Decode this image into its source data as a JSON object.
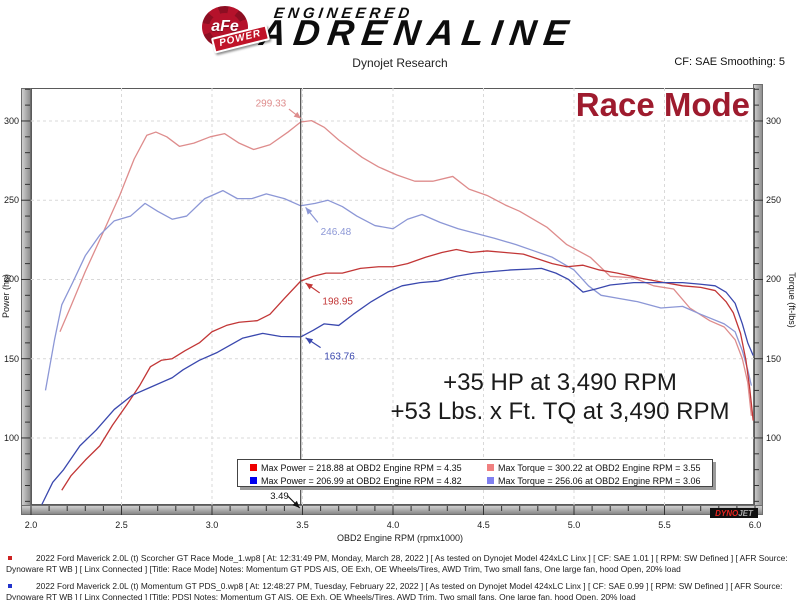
{
  "header": {
    "logo": {
      "afe": "aFe",
      "power": "POWER",
      "engineered": "ENGINEERED",
      "adrenaline": "ADRENALINE"
    },
    "subtitle": "Dynojet Research",
    "smoothing": "CF: SAE Smoothing: 5"
  },
  "chart_data": {
    "type": "line",
    "title": "Race Mode",
    "title_color": "#9e1b2e",
    "xlabel": "OBD2 Engine RPM (rpmx1000)",
    "ylabel_left": "Power (hp)",
    "ylabel_right": "Torque (ft-lbs)",
    "xlim": [
      2.0,
      6.0
    ],
    "ylim": [
      57.7,
      320.8
    ],
    "x_major_ticks": [
      2.0,
      2.5,
      3.0,
      3.5,
      4.0,
      4.5,
      5.0,
      5.5,
      6.0
    ],
    "x_tick_labels": [
      "2.0",
      "2.5",
      "3.0",
      "3.5",
      "4.0",
      "4.5",
      "5.0",
      "5.5",
      "6.0"
    ],
    "x_minor_step": 0.1,
    "y_major_ticks": [
      100,
      150,
      200,
      250,
      300
    ],
    "y_tick_labels": [
      "100",
      "150",
      "200",
      "250",
      "300"
    ],
    "y_minor_step": 10,
    "grid": "dashed",
    "grid_color": "#d9d9d9",
    "cursor": {
      "x": 3.49,
      "label": "3.49"
    },
    "annotations": [
      "+35 HP at 3,490 RPM",
      "+53 Lbs. x Ft. TQ at 3,490 RPM"
    ],
    "series": [
      {
        "name": "afe-torque",
        "color": "#de8c8c",
        "points": [
          [
            2.16,
            167
          ],
          [
            2.22,
            183
          ],
          [
            2.3,
            205
          ],
          [
            2.4,
            230
          ],
          [
            2.49,
            253
          ],
          [
            2.57,
            276
          ],
          [
            2.64,
            291
          ],
          [
            2.69,
            293
          ],
          [
            2.75,
            290
          ],
          [
            2.82,
            284
          ],
          [
            2.9,
            286
          ],
          [
            2.99,
            290
          ],
          [
            3.07,
            292
          ],
          [
            3.15,
            286
          ],
          [
            3.23,
            282
          ],
          [
            3.32,
            285
          ],
          [
            3.42,
            293
          ],
          [
            3.49,
            299.33
          ],
          [
            3.55,
            300.22
          ],
          [
            3.62,
            296
          ],
          [
            3.7,
            288
          ],
          [
            3.83,
            277
          ],
          [
            3.92,
            271
          ],
          [
            4.02,
            266
          ],
          [
            4.12,
            262
          ],
          [
            4.22,
            262
          ],
          [
            4.33,
            265
          ],
          [
            4.42,
            257
          ],
          [
            4.52,
            253
          ],
          [
            4.62,
            247
          ],
          [
            4.7,
            243
          ],
          [
            4.85,
            233
          ],
          [
            4.96,
            222
          ],
          [
            5.09,
            214
          ],
          [
            5.2,
            202
          ],
          [
            5.33,
            201
          ],
          [
            5.44,
            196
          ],
          [
            5.55,
            194
          ],
          [
            5.64,
            182
          ],
          [
            5.75,
            174
          ],
          [
            5.83,
            170
          ],
          [
            5.89,
            162
          ],
          [
            5.93,
            150
          ],
          [
            5.96,
            135
          ],
          [
            5.98,
            114
          ]
        ]
      },
      {
        "name": "stock-torque",
        "color": "#8c97d6",
        "points": [
          [
            2.08,
            130
          ],
          [
            2.13,
            162
          ],
          [
            2.17,
            184
          ],
          [
            2.23,
            198
          ],
          [
            2.3,
            215
          ],
          [
            2.38,
            228
          ],
          [
            2.46,
            237
          ],
          [
            2.55,
            240
          ],
          [
            2.63,
            248
          ],
          [
            2.7,
            243
          ],
          [
            2.78,
            238
          ],
          [
            2.86,
            240
          ],
          [
            2.96,
            251
          ],
          [
            3.06,
            256.06
          ],
          [
            3.14,
            251
          ],
          [
            3.22,
            251
          ],
          [
            3.3,
            254
          ],
          [
            3.4,
            251
          ],
          [
            3.49,
            246.48
          ],
          [
            3.57,
            248
          ],
          [
            3.64,
            250
          ],
          [
            3.72,
            246
          ],
          [
            3.8,
            240
          ],
          [
            3.9,
            234
          ],
          [
            4.0,
            232
          ],
          [
            4.08,
            238
          ],
          [
            4.16,
            241
          ],
          [
            4.26,
            236
          ],
          [
            4.36,
            232
          ],
          [
            4.46,
            229
          ],
          [
            4.56,
            226
          ],
          [
            4.68,
            222
          ],
          [
            4.78,
            218
          ],
          [
            4.88,
            214
          ],
          [
            5.0,
            206
          ],
          [
            5.08,
            196
          ],
          [
            5.15,
            190
          ],
          [
            5.25,
            188
          ],
          [
            5.35,
            186
          ],
          [
            5.48,
            182
          ],
          [
            5.6,
            183
          ],
          [
            5.7,
            178
          ],
          [
            5.83,
            172
          ],
          [
            5.89,
            167
          ],
          [
            5.93,
            155
          ],
          [
            5.96,
            143
          ],
          [
            5.98,
            133
          ]
        ]
      },
      {
        "name": "afe-power",
        "color": "#c23636",
        "points": [
          [
            2.17,
            67
          ],
          [
            2.22,
            76
          ],
          [
            2.3,
            86
          ],
          [
            2.38,
            95
          ],
          [
            2.45,
            108
          ],
          [
            2.53,
            121
          ],
          [
            2.6,
            133
          ],
          [
            2.66,
            145
          ],
          [
            2.72,
            149
          ],
          [
            2.78,
            150
          ],
          [
            2.85,
            155
          ],
          [
            2.93,
            160
          ],
          [
            3.0,
            167
          ],
          [
            3.08,
            171
          ],
          [
            3.15,
            173
          ],
          [
            3.25,
            174
          ],
          [
            3.32,
            178
          ],
          [
            3.4,
            188
          ],
          [
            3.49,
            198.95
          ],
          [
            3.56,
            202
          ],
          [
            3.63,
            204
          ],
          [
            3.72,
            204
          ],
          [
            3.82,
            207
          ],
          [
            3.92,
            208
          ],
          [
            4.0,
            208
          ],
          [
            4.08,
            210
          ],
          [
            4.18,
            214
          ],
          [
            4.27,
            217
          ],
          [
            4.35,
            218.88
          ],
          [
            4.43,
            217
          ],
          [
            4.52,
            218
          ],
          [
            4.62,
            217
          ],
          [
            4.72,
            216
          ],
          [
            4.8,
            213
          ],
          [
            4.88,
            210
          ],
          [
            4.96,
            208
          ],
          [
            5.05,
            209
          ],
          [
            5.14,
            206
          ],
          [
            5.24,
            204
          ],
          [
            5.36,
            201
          ],
          [
            5.5,
            198
          ],
          [
            5.6,
            196
          ],
          [
            5.7,
            195
          ],
          [
            5.78,
            193
          ],
          [
            5.84,
            186
          ],
          [
            5.88,
            179
          ],
          [
            5.92,
            166
          ],
          [
            5.95,
            149
          ],
          [
            5.97,
            132
          ],
          [
            5.99,
            111
          ]
        ]
      },
      {
        "name": "stock-power",
        "color": "#3a48ae",
        "points": [
          [
            2.06,
            58
          ],
          [
            2.12,
            72
          ],
          [
            2.18,
            80
          ],
          [
            2.27,
            95
          ],
          [
            2.36,
            105
          ],
          [
            2.46,
            118
          ],
          [
            2.56,
            127
          ],
          [
            2.66,
            132
          ],
          [
            2.78,
            138
          ],
          [
            2.84,
            143
          ],
          [
            2.93,
            149
          ],
          [
            3.03,
            154
          ],
          [
            3.17,
            163
          ],
          [
            3.28,
            166
          ],
          [
            3.38,
            164
          ],
          [
            3.49,
            163.76
          ],
          [
            3.56,
            168
          ],
          [
            3.62,
            172
          ],
          [
            3.7,
            171
          ],
          [
            3.78,
            178
          ],
          [
            3.88,
            186
          ],
          [
            3.97,
            192
          ],
          [
            4.05,
            196
          ],
          [
            4.15,
            198
          ],
          [
            4.25,
            199
          ],
          [
            4.35,
            202
          ],
          [
            4.45,
            204
          ],
          [
            4.55,
            205
          ],
          [
            4.65,
            206
          ],
          [
            4.75,
            206.5
          ],
          [
            4.82,
            206.99
          ],
          [
            4.9,
            204
          ],
          [
            4.97,
            200
          ],
          [
            5.05,
            192
          ],
          [
            5.12,
            194
          ],
          [
            5.2,
            196.5
          ],
          [
            5.33,
            198
          ],
          [
            5.45,
            198
          ],
          [
            5.6,
            198
          ],
          [
            5.7,
            197
          ],
          [
            5.78,
            196
          ],
          [
            5.84,
            192
          ],
          [
            5.89,
            185
          ],
          [
            5.93,
            172
          ],
          [
            5.96,
            160
          ],
          [
            5.99,
            152
          ]
        ]
      }
    ],
    "point_labels": [
      {
        "text": "299.33",
        "color": "#de8c8c",
        "anchor": "end",
        "lx": 3.41,
        "lv": 311,
        "ax": 3.425,
        "av": 307.5,
        "tx": 3.492,
        "tv": 301.5
      },
      {
        "text": "246.48",
        "color": "#8c97d6",
        "anchor": "start",
        "lx": 3.6,
        "lv": 230,
        "ax": 3.585,
        "av": 236,
        "tx": 3.517,
        "tv": 245.5
      },
      {
        "text": "198.95",
        "color": "#c23636",
        "anchor": "start",
        "lx": 3.61,
        "lv": 186,
        "ax": 3.595,
        "av": 191.5,
        "tx": 3.517,
        "tv": 197.8
      },
      {
        "text": "163.76",
        "color": "#3a48ae",
        "anchor": "start",
        "lx": 3.62,
        "lv": 151.5,
        "ax": 3.6,
        "av": 157,
        "tx": 3.517,
        "tv": 163.2
      }
    ],
    "legend": [
      {
        "swatch": "#ee0000",
        "text": "Max Power = 218.88 at OBD2 Engine RPM = 4.35"
      },
      {
        "swatch": "#f08080",
        "text": "Max Torque = 300.22 at OBD2 Engine RPM = 3.55"
      },
      {
        "swatch": "#0000ee",
        "text": "Max Power = 206.99 at OBD2 Engine RPM = 4.82"
      },
      {
        "swatch": "#8080f0",
        "text": "Max Torque = 256.06 at OBD2 Engine RPM = 3.06"
      }
    ],
    "legend_position": "bottom-center"
  },
  "watermark": {
    "dyno": "DYNO",
    "jet": "JET"
  },
  "footer": {
    "entries": [
      {
        "bullet_color": "#cc2222",
        "text": "2022 Ford Maverick 2.0L (t) Scorcher GT Race Mode_1.wp8 [ At: 12:31:49 PM, Monday, March 28, 2022 ] [ As tested on Dynojet Model 424xLC Linx ] [ CF: SAE 1.01 ] [ RPM: SW Defined ] [ AFR Source: Dynoware RT WB ] [ Linx Connected ] [Title: Race Mode]  Notes: Momentum GT PDS AIS, OE Exh, OE Wheels/Tires, AWD Trim, Two small fans, One large fan, hood Open, 20% load"
      },
      {
        "bullet_color": "#2233cc",
        "text": "2022 Ford Maverick 2.0L (t) Momentum GT PDS_0.wp8 [ At: 12:48:27 PM, Tuesday, February 22, 2022 ] [ As tested on Dynojet Model 424xLC Linx ] [ CF: SAE 0.99 ] [ RPM: SW Defined ] [ AFR Source: Dynoware RT WB ] [ Linx Connected ] [Title: PDS]  Notes: Momentum GT AIS, OE Exh, OE Wheels/Tires, AWD Trim, Two small fans, One large fan, hood Open, 20% load"
      }
    ]
  }
}
